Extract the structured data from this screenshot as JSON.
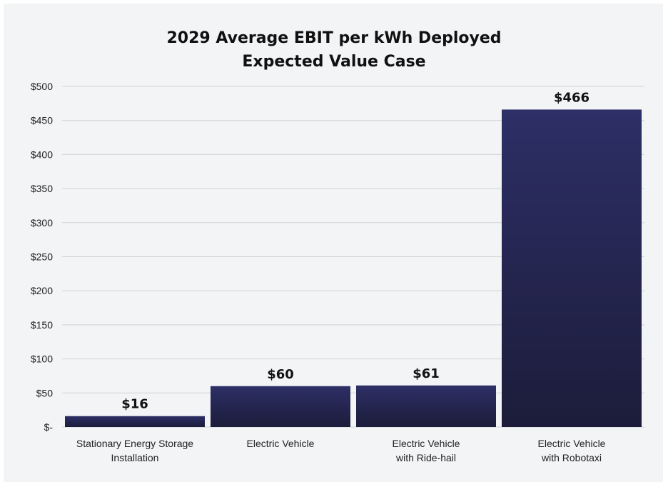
{
  "chart_data": {
    "type": "bar",
    "title": [
      "2029 Average EBIT per kWh Deployed",
      "Expected Value Case"
    ],
    "categories": [
      [
        "Stationary Energy Storage",
        "Installation"
      ],
      [
        "Electric Vehicle"
      ],
      [
        "Electric Vehicle",
        "with Ride-hail"
      ],
      [
        "Electric Vehicle",
        "with Robotaxi"
      ]
    ],
    "values": [
      16,
      60,
      61,
      466
    ],
    "data_labels": [
      "$16",
      "$60",
      "$61",
      "$466"
    ],
    "ylim": [
      0,
      500
    ],
    "yticks": [
      0,
      50,
      100,
      150,
      200,
      250,
      300,
      350,
      400,
      450,
      500
    ],
    "ytick_labels": [
      "$-",
      "$50",
      "$100",
      "$150",
      "$200",
      "$250",
      "$300",
      "$350",
      "$400",
      "$450",
      "$500"
    ],
    "xlabel": "",
    "ylabel": "",
    "grid": true,
    "legend": "none",
    "colors": {
      "bar_top": "#2d2f66",
      "bar_bottom": "#1c1c3a",
      "background": "#f3f4f6"
    }
  }
}
